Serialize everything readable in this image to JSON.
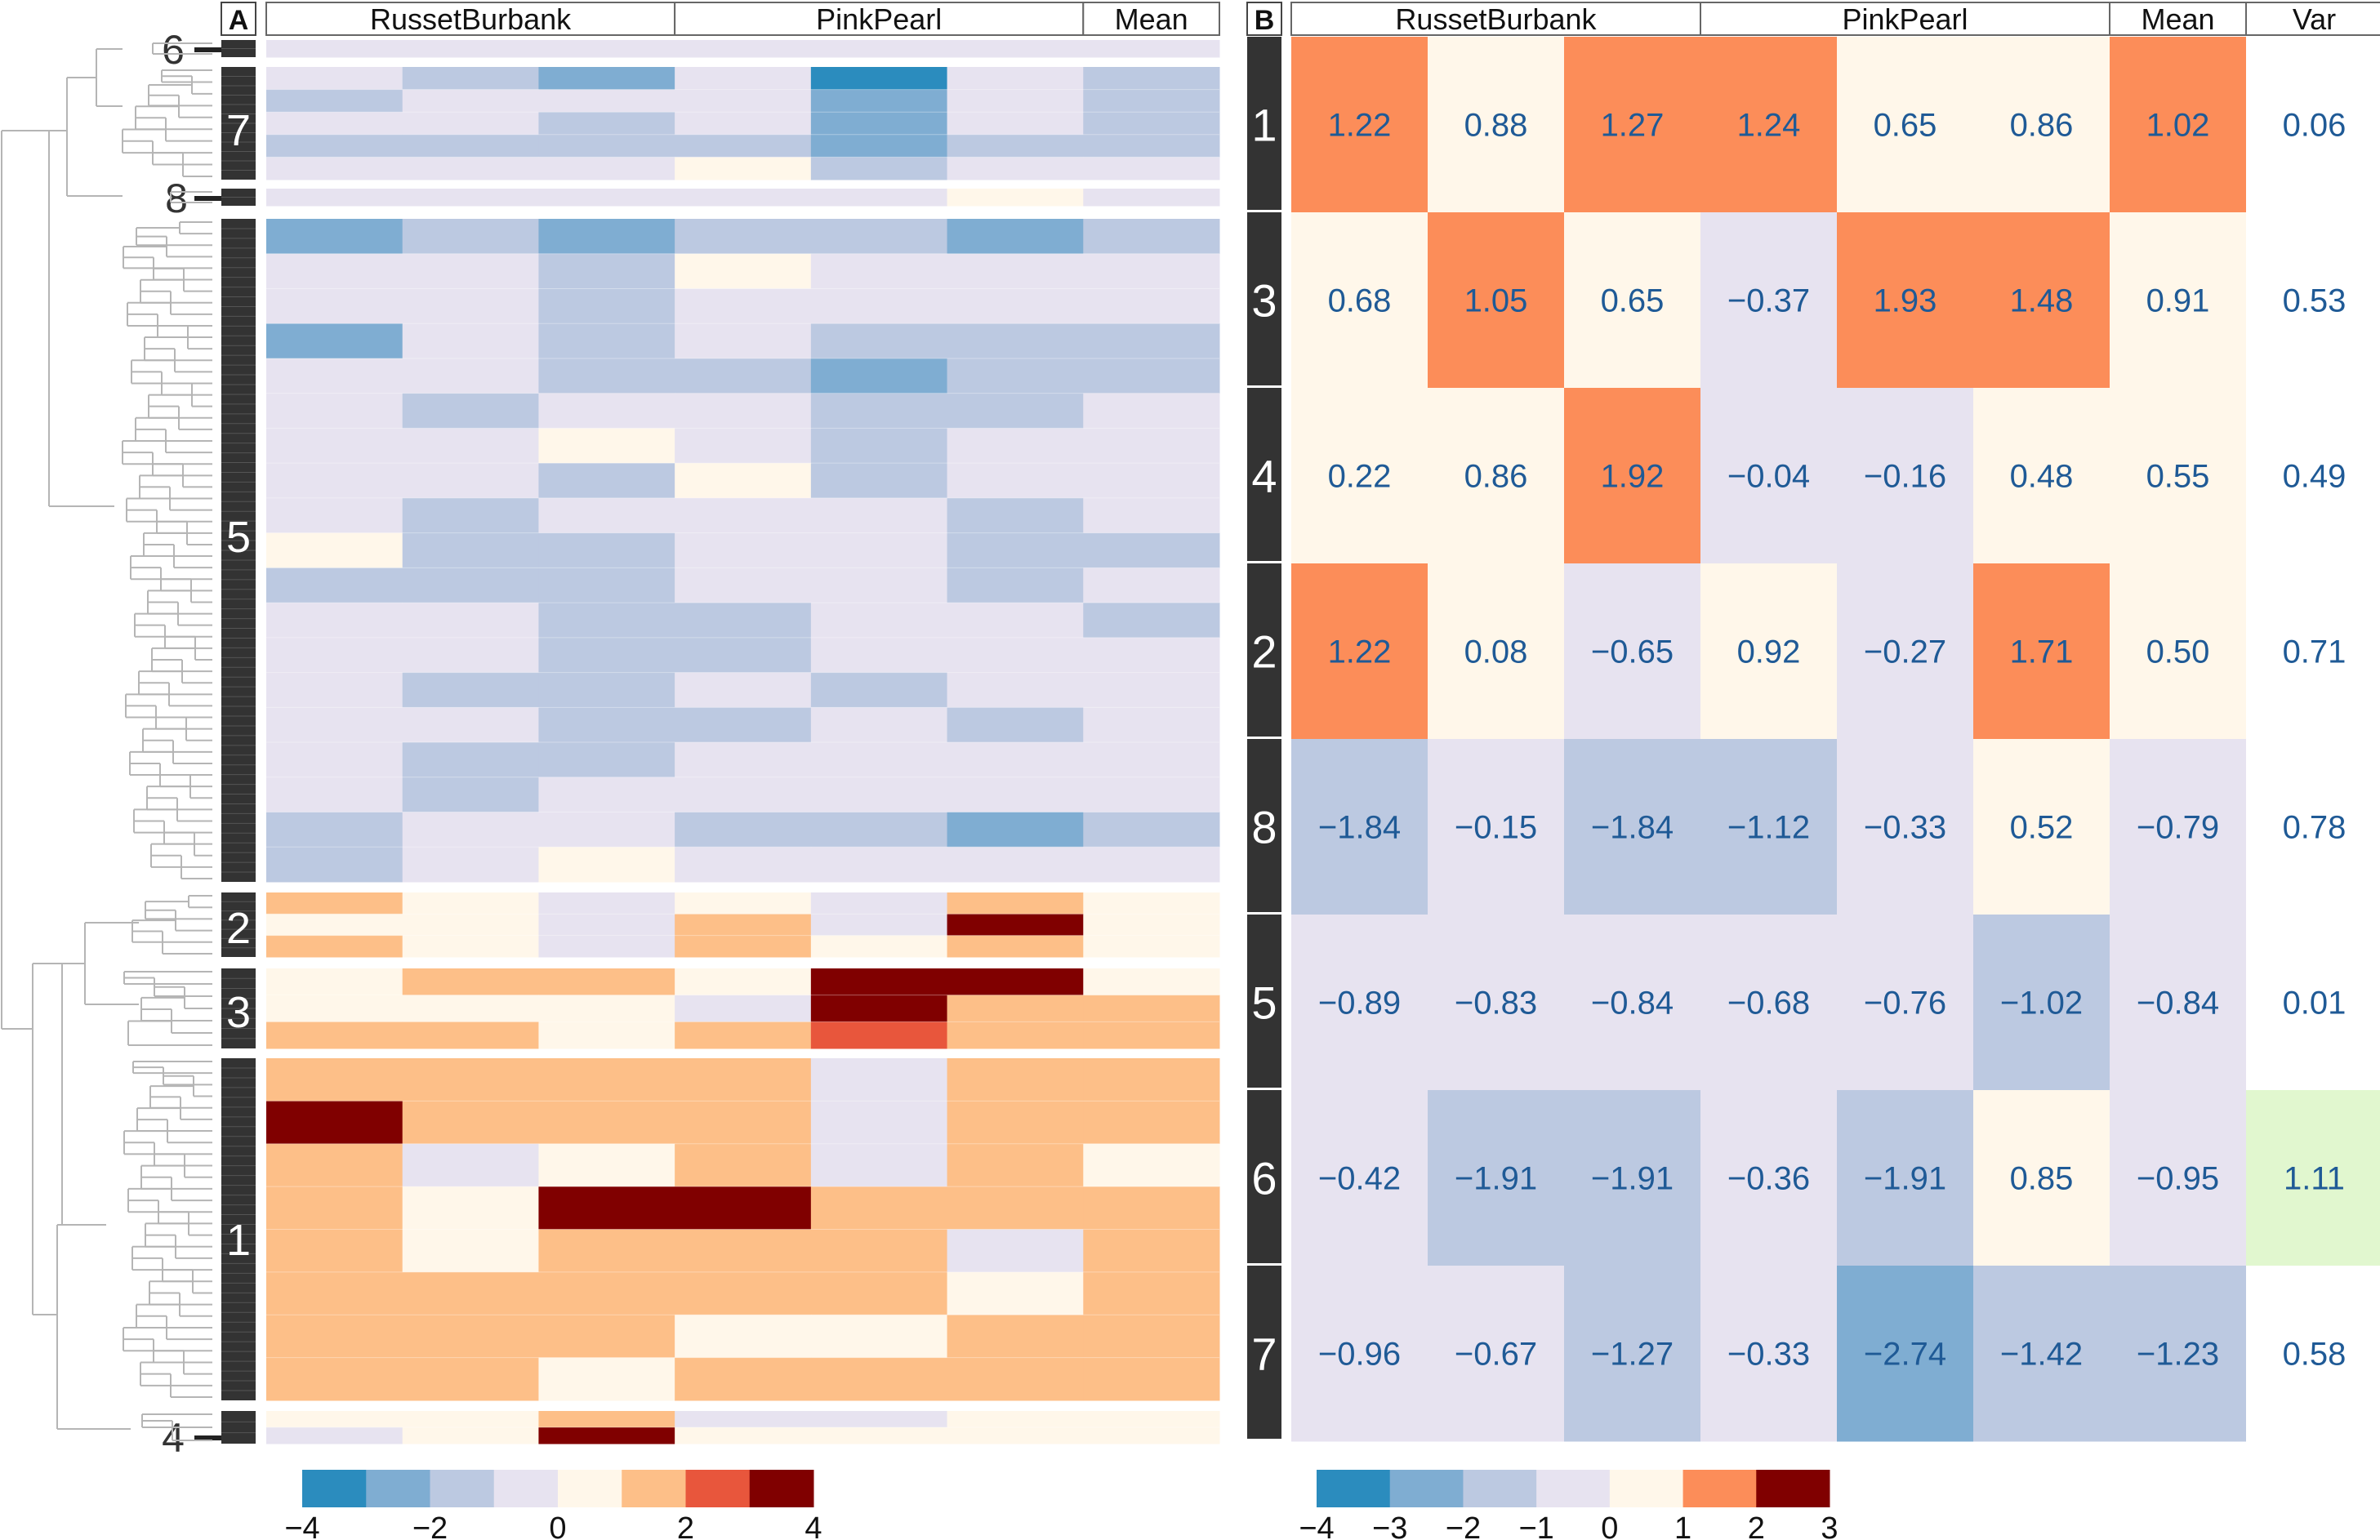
{
  "chart_data": [
    {
      "type": "heatmap",
      "panel_label": "A",
      "column_groups": [
        "RussetBurbank",
        "PinkPearl",
        "Mean"
      ],
      "cluster_labels_top_to_bottom": [
        "6",
        "7",
        "8",
        "5",
        "2",
        "3",
        "1",
        "4"
      ],
      "color_scale": {
        "ticks": [
          "−4",
          "−2",
          "0",
          "2",
          "4"
        ],
        "bins": [
          -4,
          -3,
          -2,
          -1,
          0,
          1,
          2,
          3,
          4
        ],
        "colors": [
          "#2b8cbe",
          "#7fadd2",
          "#bcc9e1",
          "#e7e3f0",
          "#fff7ea",
          "#fdbf88",
          "#e8563c",
          "#800000"
        ]
      },
      "cluster_row_profiles": {
        "6": [
          [
            -1,
            -1,
            -1,
            -1,
            -1,
            -1,
            -1
          ]
        ],
        "7": [
          [
            -1,
            -2,
            -3,
            -1,
            -4,
            -1,
            -2
          ],
          [
            -2,
            -1,
            -1,
            -1,
            -3,
            -1,
            -2
          ],
          [
            -1,
            -1,
            -2,
            -1,
            -3,
            -1,
            -2
          ],
          [
            -2,
            -2,
            -2,
            -2,
            -3,
            -2,
            -2
          ],
          [
            -1,
            -1,
            -1,
            0,
            -2,
            -1,
            -1
          ]
        ],
        "8": [
          [
            -1,
            -1,
            -1,
            -1,
            -1,
            0,
            -1
          ]
        ],
        "5": [
          [
            -3,
            -2,
            -3,
            -2,
            -2,
            -3,
            -2
          ],
          [
            -1,
            -1,
            -2,
            0,
            -1,
            -1,
            -1
          ],
          [
            -1,
            -1,
            -2,
            -1,
            -1,
            -1,
            -1
          ],
          [
            -3,
            -1,
            -2,
            -1,
            -2,
            -2,
            -2
          ],
          [
            -1,
            -1,
            -2,
            -2,
            -3,
            -2,
            -2
          ],
          [
            -1,
            -2,
            -1,
            -1,
            -2,
            -2,
            -1
          ],
          [
            -1,
            -1,
            0,
            -1,
            -2,
            -1,
            -1
          ],
          [
            -1,
            -1,
            -2,
            0,
            -2,
            -1,
            -1
          ],
          [
            -1,
            -2,
            -1,
            -1,
            -1,
            -2,
            -1
          ],
          [
            0,
            -2,
            -2,
            -1,
            -1,
            -2,
            -2
          ],
          [
            -2,
            -2,
            -2,
            -1,
            -1,
            -2,
            -1
          ],
          [
            -1,
            -1,
            -2,
            -2,
            -1,
            -1,
            -2
          ],
          [
            -1,
            -1,
            -2,
            -2,
            -1,
            -1,
            -1
          ],
          [
            -1,
            -2,
            -2,
            -1,
            -2,
            -1,
            -1
          ],
          [
            -1,
            -1,
            -2,
            -2,
            -1,
            -2,
            -1
          ],
          [
            -1,
            -2,
            -2,
            -1,
            -1,
            -1,
            -1
          ],
          [
            -1,
            -2,
            -1,
            -1,
            -1,
            -1,
            -1
          ],
          [
            -2,
            -1,
            -1,
            -2,
            -2,
            -3,
            -2
          ],
          [
            -2,
            -1,
            0,
            -1,
            -1,
            -1,
            -1
          ]
        ],
        "2": [
          [
            1,
            0,
            -1,
            0,
            -1,
            1,
            0
          ],
          [
            0,
            0,
            -1,
            1,
            -1,
            3,
            0
          ],
          [
            1,
            0,
            -1,
            1,
            0,
            1,
            0
          ]
        ],
        "3": [
          [
            0,
            1,
            1,
            0,
            3,
            3,
            0
          ],
          [
            0,
            0,
            0,
            -1,
            3,
            1,
            1
          ],
          [
            1,
            1,
            0,
            1,
            2,
            1,
            1
          ]
        ],
        "1": [
          [
            1,
            1,
            1,
            1,
            -1,
            1,
            1
          ],
          [
            3,
            1,
            1,
            1,
            -1,
            1,
            1
          ],
          [
            1,
            -1,
            0,
            1,
            -1,
            1,
            0
          ],
          [
            1,
            0,
            3,
            3,
            1,
            1,
            1
          ],
          [
            1,
            0,
            1,
            1,
            1,
            -1,
            1
          ],
          [
            1,
            1,
            1,
            1,
            1,
            0,
            1
          ],
          [
            1,
            1,
            1,
            0,
            0,
            1,
            1
          ],
          [
            1,
            1,
            0,
            1,
            1,
            1,
            1
          ]
        ],
        "4": [
          [
            0,
            0,
            1,
            -1,
            -1,
            0,
            0
          ],
          [
            -1,
            0,
            3,
            0,
            0,
            0,
            0
          ]
        ]
      }
    },
    {
      "type": "heatmap",
      "panel_label": "B",
      "column_groups": [
        "RussetBurbank",
        "PinkPearl",
        "Mean",
        "Var"
      ],
      "columns": [
        "RussetBurbank 1",
        "RussetBurbank 2",
        "RussetBurbank 3",
        "PinkPearl 1",
        "PinkPearl 2",
        "PinkPearl 3",
        "Mean",
        "Var"
      ],
      "rows": [
        "1",
        "3",
        "4",
        "2",
        "8",
        "5",
        "6",
        "7"
      ],
      "values": [
        [
          "1.22",
          "0.88",
          "1.27",
          "1.24",
          "0.65",
          "0.86",
          "1.02",
          "0.06"
        ],
        [
          "0.68",
          "1.05",
          "0.65",
          "−0.37",
          "1.93",
          "1.48",
          "0.91",
          "0.53"
        ],
        [
          "0.22",
          "0.86",
          "1.92",
          "−0.04",
          "−0.16",
          "0.48",
          "0.55",
          "0.49"
        ],
        [
          "1.22",
          "0.08",
          "−0.65",
          "0.92",
          "−0.27",
          "1.71",
          "0.50",
          "0.71"
        ],
        [
          "−1.84",
          "−0.15",
          "−1.84",
          "−1.12",
          "−0.33",
          "0.52",
          "−0.79",
          "0.78"
        ],
        [
          "−0.89",
          "−0.83",
          "−0.84",
          "−0.68",
          "−0.76",
          "−1.02",
          "−0.84",
          "0.01"
        ],
        [
          "−0.42",
          "−1.91",
          "−1.91",
          "−0.36",
          "−1.91",
          "0.85",
          "−0.95",
          "1.11"
        ],
        [
          "−0.96",
          "−0.67",
          "−1.27",
          "−0.33",
          "−2.74",
          "−1.42",
          "−1.23",
          "0.58"
        ]
      ],
      "highlight_color": "#e1f7cf",
      "color_scale": {
        "ticks": [
          "−4",
          "−3",
          "−2",
          "−1",
          "0",
          "1",
          "2",
          "3"
        ],
        "bins": [
          -4,
          -3,
          -2,
          -1,
          0,
          1,
          2,
          3
        ],
        "colors": [
          "#2b8cbe",
          "#7fadd2",
          "#bcc9e1",
          "#e7e3f0",
          "#fff7ea",
          "#fc8d59",
          "#800000"
        ]
      }
    }
  ]
}
